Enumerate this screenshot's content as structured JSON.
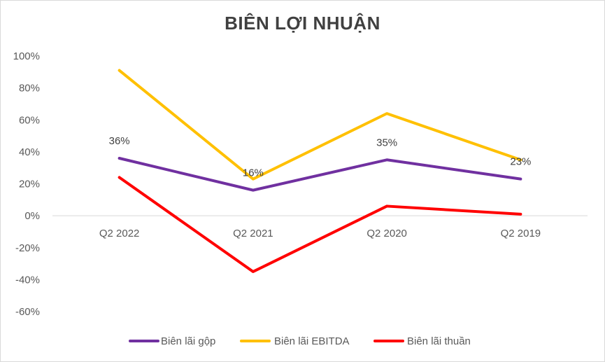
{
  "chart_data": {
    "type": "line",
    "title": "BIÊN LỢI NHUẬN",
    "categories": [
      "Q2 2022",
      "Q2 2021",
      "Q2 2020",
      "Q2 2019"
    ],
    "ylim": [
      -60,
      100
    ],
    "yticks": [
      100,
      80,
      60,
      40,
      20,
      0,
      -20,
      -40,
      -60
    ],
    "ytick_labels": [
      "100%",
      "80%",
      "60%",
      "40%",
      "20%",
      "0%",
      "-20%",
      "-40%",
      "-60%"
    ],
    "grid": false,
    "legend": "bottom",
    "series": [
      {
        "name": "Biên lãi gộp",
        "values": [
          36,
          16,
          35,
          23
        ],
        "color": "#7030a0",
        "data_labels": [
          "36%",
          "16%",
          "35%",
          "23%"
        ]
      },
      {
        "name": "Biên lãi EBITDA",
        "values": [
          91,
          23,
          64,
          35
        ],
        "color": "#ffc000"
      },
      {
        "name": "Biên lãi thuần",
        "values": [
          24,
          -35,
          6,
          1
        ],
        "color": "#ff0000"
      }
    ]
  }
}
